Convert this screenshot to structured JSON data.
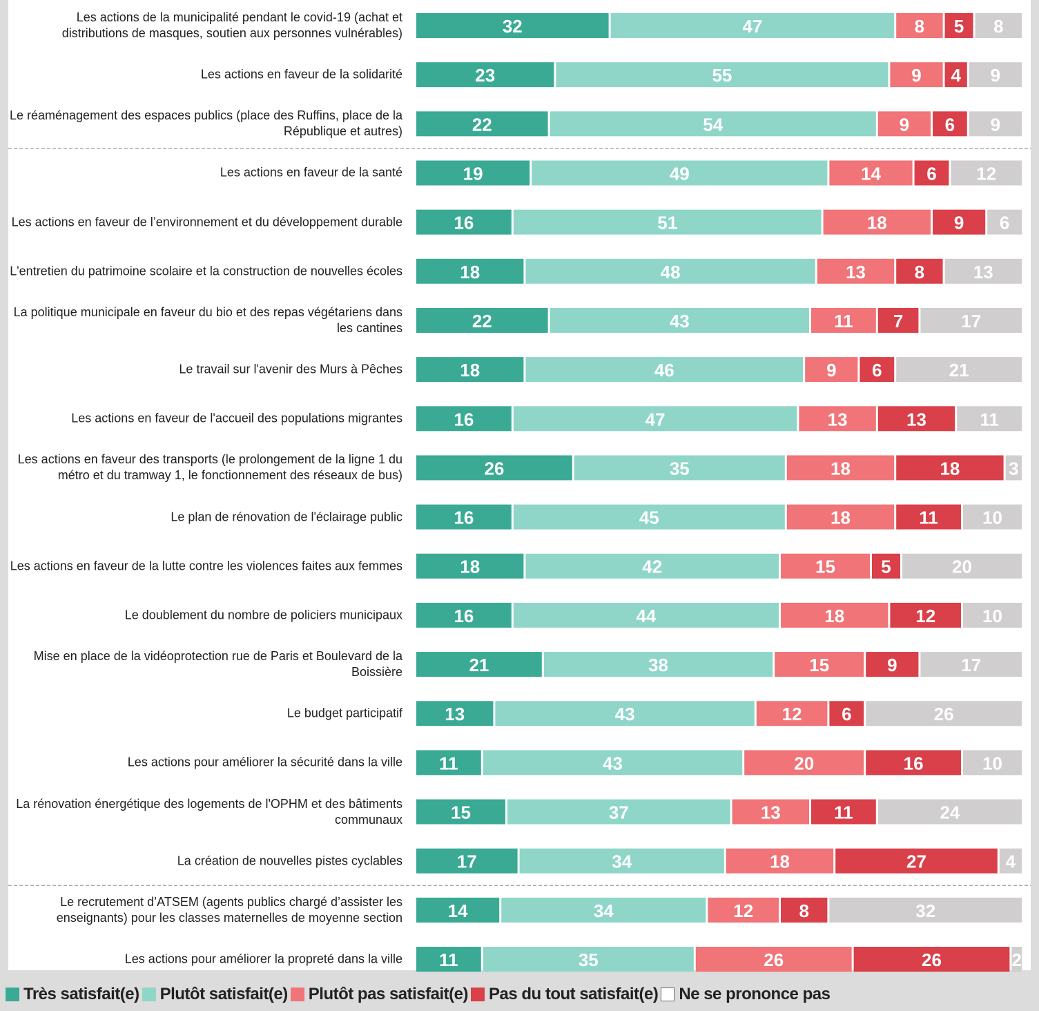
{
  "chart_data": {
    "type": "stacked_bar_horizontal",
    "categories": [
      "Les actions de la municipalité pendant le covid-19 (achat et distributions de masques, soutien aux personnes vulnérables)",
      "Les actions en faveur de la solidarité",
      "Le réaménagement des espaces publics (place des Ruffins, place de la République et autres)",
      "Les actions en faveur de la santé",
      "Les actions en faveur de l’environnement et du développement durable",
      "L'entretien du patrimoine scolaire et la construction de nouvelles écoles",
      "La politique municipale en faveur du bio et des repas végétariens dans les cantines",
      "Le travail sur l'avenir des Murs à Pêches",
      "Les actions en faveur de l'accueil des populations migrantes",
      "Les actions en faveur des transports (le prolongement de la ligne 1 du métro et du tramway 1, le fonctionnement des réseaux de bus)",
      "Le plan de rénovation de l'éclairage public",
      "Les actions en faveur de la lutte contre les violences faites aux femmes",
      "Le doublement du nombre de policiers municipaux",
      "Mise en place de la vidéoprotection rue de Paris et Boulevard de la Boissière",
      "Le budget participatif",
      "Les actions pour améliorer la sécurité dans la ville",
      "La rénovation énergétique des logements de l'OPHM et des bâtiments communaux",
      "La création de nouvelles pistes cyclables",
      "Le recrutement d’ATSEM (agents publics chargé d’assister les enseignants) pour les classes maternelles de moyenne section",
      "Les actions pour améliorer la propreté dans la ville"
    ],
    "series": [
      {
        "name": "Très satisfait(e)",
        "color": "#3aaa94",
        "values": [
          32,
          23,
          22,
          19,
          16,
          18,
          22,
          18,
          16,
          26,
          16,
          18,
          16,
          21,
          13,
          11,
          15,
          17,
          14,
          11
        ]
      },
      {
        "name": "Plutôt satisfait(e)",
        "color": "#8fd6c8",
        "values": [
          47,
          55,
          54,
          49,
          51,
          48,
          43,
          46,
          47,
          35,
          45,
          42,
          44,
          38,
          43,
          43,
          37,
          34,
          34,
          35
        ]
      },
      {
        "name": "Plutôt pas satisfait(e)",
        "color": "#f07478",
        "values": [
          8,
          9,
          9,
          14,
          18,
          13,
          11,
          9,
          13,
          18,
          18,
          15,
          18,
          15,
          12,
          20,
          13,
          18,
          12,
          26
        ]
      },
      {
        "name": "Pas du tout satisfait(e)",
        "color": "#d9404a",
        "values": [
          5,
          4,
          6,
          6,
          9,
          8,
          7,
          6,
          13,
          18,
          11,
          5,
          12,
          9,
          6,
          16,
          11,
          27,
          8,
          26
        ]
      },
      {
        "name": "Ne se prononce pas",
        "color": "#d0cece",
        "values": [
          8,
          9,
          9,
          12,
          6,
          13,
          17,
          21,
          11,
          3,
          10,
          20,
          10,
          17,
          26,
          10,
          24,
          4,
          32,
          2
        ]
      }
    ],
    "xlim": [
      0,
      100
    ]
  }
}
